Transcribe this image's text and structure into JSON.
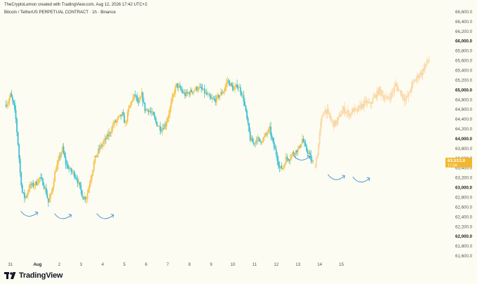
{
  "header": {
    "attribution": "TheCryptoLemon created with TradingView.com, Aug 12, 2026 17:42 UTC+2",
    "symbol": "Bitcoin / TetherUS PERPETUAL CONTRACT · 1h · Binance"
  },
  "branding": {
    "logo_text": "TradingView",
    "logo_icon": "tradingview-logo-icon"
  },
  "colors": {
    "up": "#f5c24a",
    "down": "#3bbfd0",
    "projection": "#f9d7a4",
    "arrows": "#3e8fd6",
    "last_price_bg": "#f2b730",
    "background": "#fdfcf3"
  },
  "chart_data": {
    "type": "candlestick",
    "title": "Bitcoin / TetherUS PERPETUAL CONTRACT · 1h · Binance",
    "xlabel": "",
    "ylabel": "",
    "ylim": [
      61500,
      66700
    ],
    "x_tick_labels": [
      "31",
      "Aug",
      "2",
      "3",
      "4",
      "5",
      "6",
      "7",
      "8",
      "9",
      "10",
      "11",
      "12",
      "13",
      "14",
      "15"
    ],
    "y_ticks": [
      61600,
      61800,
      62000,
      62200,
      62400,
      62600,
      62800,
      63000,
      63200,
      63400,
      63600,
      63800,
      64000,
      64200,
      64400,
      64600,
      64800,
      65000,
      65200,
      65400,
      65600,
      65800,
      66000,
      66200,
      66400,
      66600
    ],
    "y_tick_labels": [
      "61,600.0",
      "61,800.0",
      "62,000.0",
      "62,200.0",
      "62,400.0",
      "62,600.0",
      "62,800.0",
      "63,000.0",
      "63,200.0",
      "63,400.0",
      "63,600.0",
      "63,800.0",
      "64,000.0",
      "64,200.0",
      "64,400.0",
      "64,600.0",
      "64,800.0",
      "65,000.0",
      "65,200.0",
      "65,400.0",
      "65,600.0",
      "65,800.0",
      "66,000.0",
      "66,200.0",
      "66,400.0",
      "66,600.0"
    ],
    "y_bold_ticks": [
      62000,
      63000,
      64000,
      65000,
      66000
    ],
    "last_price": 63513,
    "last_price_label": "63,513.0",
    "countdown_label": "17:48",
    "grid": false,
    "legend": "none",
    "price_path": [
      [
        0.0,
        64700
      ],
      [
        0.3,
        64750
      ],
      [
        0.5,
        64900
      ],
      [
        0.8,
        64700
      ],
      [
        1.0,
        64400
      ],
      [
        1.2,
        63900
      ],
      [
        1.4,
        63300
      ],
      [
        1.6,
        62900
      ],
      [
        1.8,
        62800
      ],
      [
        2.0,
        62850
      ],
      [
        2.2,
        63000
      ],
      [
        2.4,
        63050
      ],
      [
        2.6,
        63050
      ],
      [
        2.9,
        63100
      ],
      [
        3.2,
        63200
      ],
      [
        3.5,
        63100
      ],
      [
        3.8,
        62900
      ],
      [
        4.0,
        62700
      ],
      [
        4.3,
        62900
      ],
      [
        4.6,
        63300
      ],
      [
        5.0,
        63600
      ],
      [
        5.3,
        63800
      ],
      [
        5.6,
        63500
      ],
      [
        6.0,
        63350
      ],
      [
        6.3,
        63300
      ],
      [
        6.6,
        63200
      ],
      [
        6.9,
        63000
      ],
      [
        7.2,
        62800
      ],
      [
        7.5,
        62800
      ],
      [
        7.9,
        63200
      ],
      [
        8.3,
        63600
      ],
      [
        8.7,
        63800
      ],
      [
        9.0,
        63900
      ],
      [
        9.3,
        64000
      ],
      [
        9.6,
        64100
      ],
      [
        10.0,
        64300
      ],
      [
        10.4,
        64400
      ],
      [
        10.8,
        64500
      ],
      [
        11.1,
        64300
      ],
      [
        11.4,
        64600
      ],
      [
        11.7,
        64800
      ],
      [
        12.0,
        64900
      ],
      [
        12.3,
        64700
      ],
      [
        12.6,
        64900
      ],
      [
        12.9,
        64600
      ],
      [
        13.2,
        64600
      ],
      [
        13.6,
        64500
      ],
      [
        14.0,
        64300
      ],
      [
        14.4,
        64200
      ],
      [
        14.8,
        64300
      ],
      [
        15.2,
        64600
      ],
      [
        15.5,
        64900
      ],
      [
        15.8,
        65100
      ],
      [
        16.2,
        65000
      ],
      [
        16.6,
        64900
      ],
      [
        17.0,
        64950
      ],
      [
        17.4,
        65000
      ],
      [
        17.8,
        65050
      ],
      [
        18.2,
        65000
      ],
      [
        18.6,
        64900
      ],
      [
        19.0,
        64800
      ],
      [
        19.4,
        64800
      ],
      [
        19.8,
        64900
      ],
      [
        20.2,
        65000
      ],
      [
        20.5,
        65200
      ],
      [
        20.8,
        65100
      ],
      [
        21.1,
        65000
      ],
      [
        21.4,
        65100
      ],
      [
        21.7,
        65000
      ],
      [
        22.0,
        64800
      ],
      [
        22.3,
        64400
      ],
      [
        22.6,
        64000
      ],
      [
        22.9,
        63900
      ],
      [
        23.2,
        64000
      ],
      [
        23.5,
        63950
      ],
      [
        23.8,
        64000
      ],
      [
        24.1,
        64100
      ],
      [
        24.4,
        64200
      ],
      [
        24.7,
        63900
      ],
      [
        25.0,
        63700
      ],
      [
        25.3,
        63400
      ],
      [
        25.6,
        63400
      ],
      [
        25.9,
        63600
      ],
      [
        26.2,
        63600
      ],
      [
        26.5,
        63700
      ],
      [
        26.8,
        63750
      ],
      [
        27.1,
        63800
      ],
      [
        27.4,
        64000
      ],
      [
        27.7,
        63800
      ],
      [
        28.0,
        63700
      ],
      [
        28.3,
        63513
      ]
    ],
    "projection_path": [
      [
        28.5,
        63400
      ],
      [
        28.8,
        63700
      ],
      [
        29.1,
        64300
      ],
      [
        29.4,
        64600
      ],
      [
        29.7,
        64550
      ],
      [
        30.0,
        64400
      ],
      [
        30.3,
        64300
      ],
      [
        30.6,
        64350
      ],
      [
        30.9,
        64500
      ],
      [
        31.2,
        64600
      ],
      [
        31.5,
        64550
      ],
      [
        31.8,
        64500
      ],
      [
        32.1,
        64600
      ],
      [
        32.4,
        64550
      ],
      [
        32.7,
        64650
      ],
      [
        33.0,
        64700
      ],
      [
        33.3,
        64750
      ],
      [
        33.6,
        64700
      ],
      [
        33.9,
        64800
      ],
      [
        34.2,
        64900
      ],
      [
        34.5,
        65000
      ],
      [
        34.8,
        64900
      ],
      [
        35.1,
        64800
      ],
      [
        35.4,
        64850
      ],
      [
        35.7,
        64950
      ],
      [
        36.0,
        65100
      ],
      [
        36.3,
        65000
      ],
      [
        36.6,
        64900
      ],
      [
        36.9,
        64800
      ],
      [
        37.2,
        64900
      ],
      [
        37.5,
        65100
      ],
      [
        37.8,
        65200
      ],
      [
        38.1,
        65300
      ],
      [
        38.4,
        65350
      ],
      [
        38.7,
        65500
      ],
      [
        39.0,
        65600
      ]
    ],
    "annotations": [
      {
        "type": "curved-arrow",
        "at_x": 2.2,
        "at_y": 62450
      },
      {
        "type": "curved-arrow",
        "at_x": 5.3,
        "at_y": 62400
      },
      {
        "type": "curved-arrow",
        "at_x": 9.2,
        "at_y": 62400
      },
      {
        "type": "curved-arrow",
        "at_x": 27.3,
        "at_y": 63600
      },
      {
        "type": "curved-arrow",
        "at_x": 30.5,
        "at_y": 63200
      },
      {
        "type": "curved-arrow",
        "at_x": 32.8,
        "at_y": 63150
      }
    ]
  }
}
